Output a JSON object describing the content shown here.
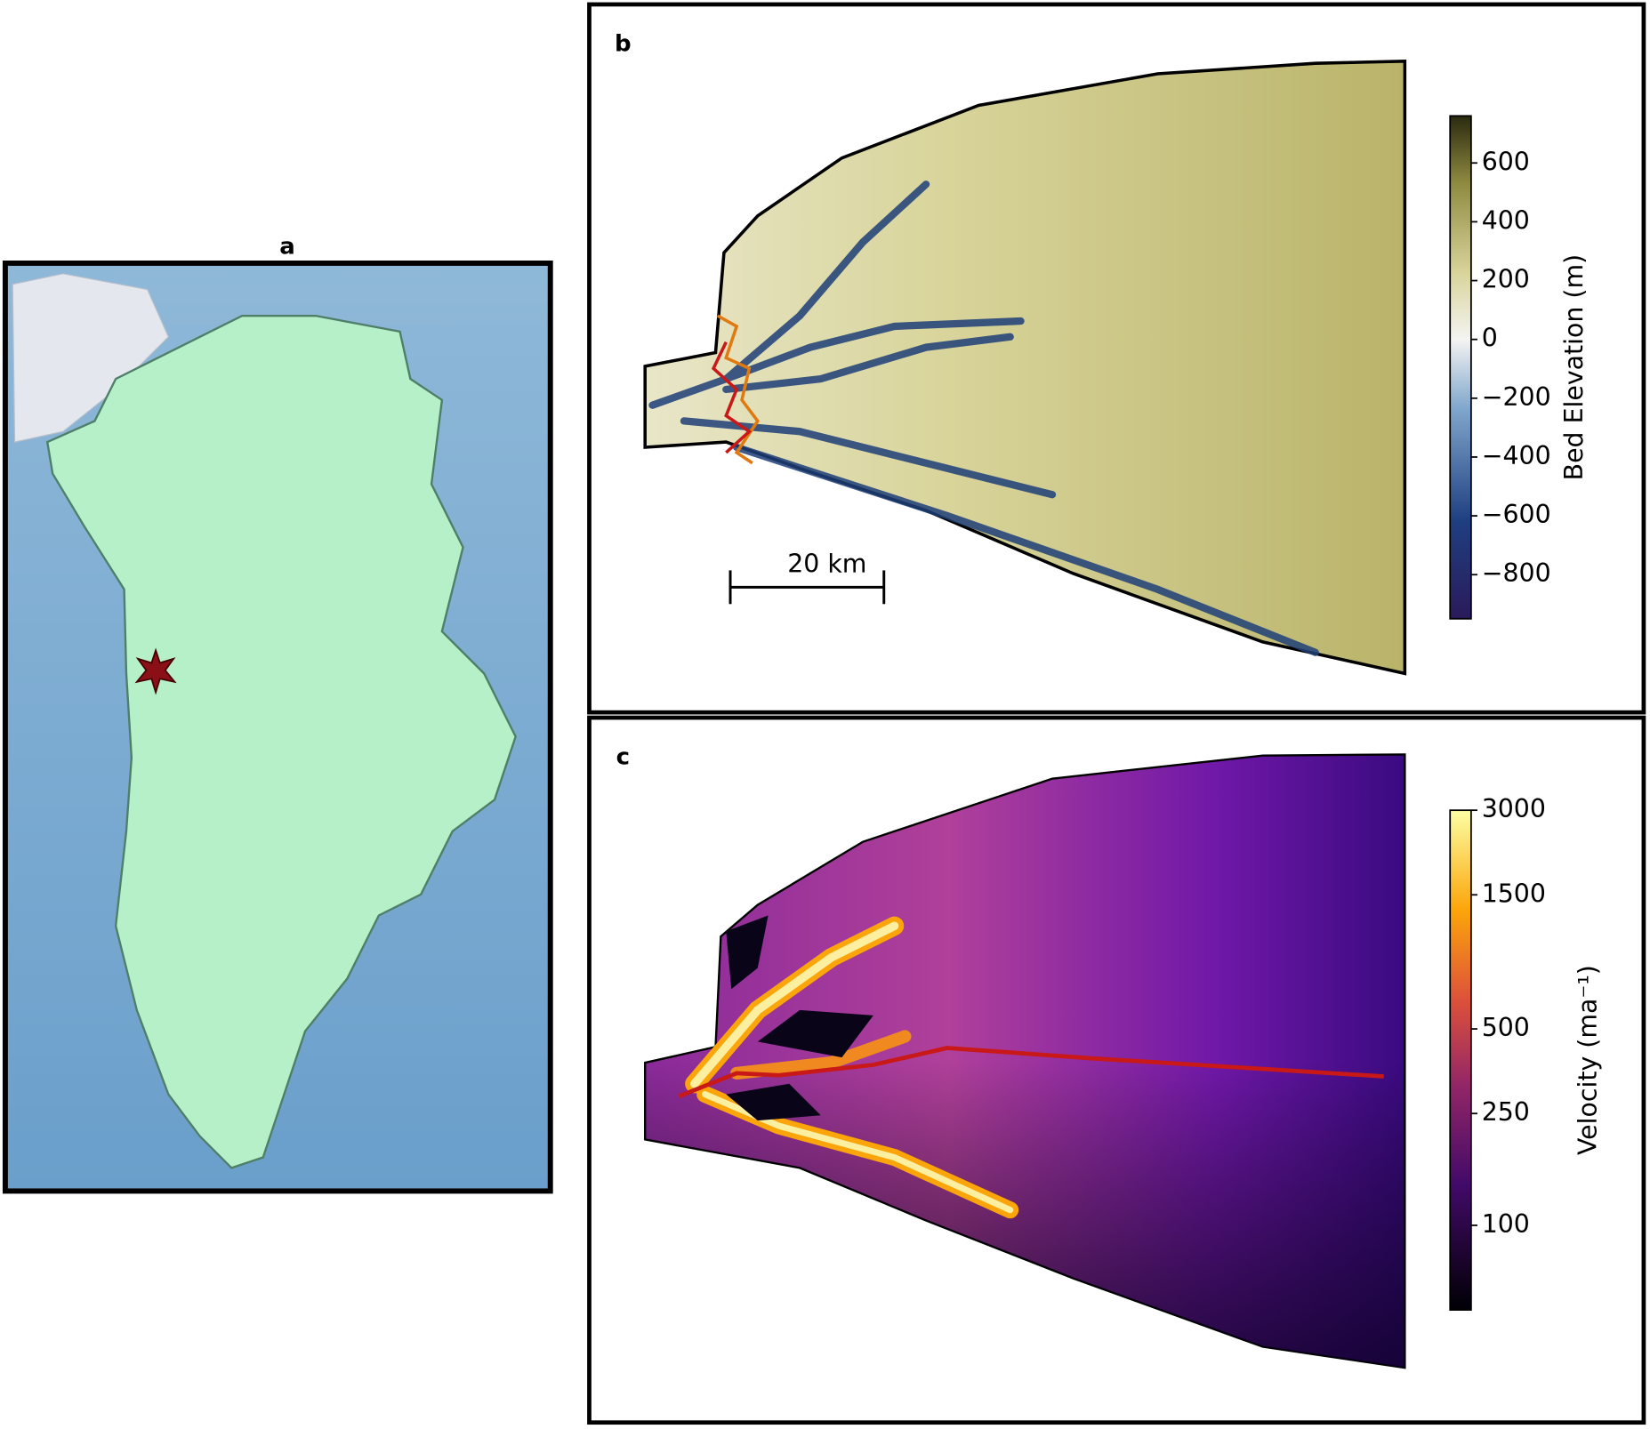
{
  "panels": [
    {
      "label": "a"
    },
    {
      "label": "b",
      "scale_bar": "20 km",
      "colorbar": {
        "label": "Bed Elevation (m)",
        "lim": [
          -950,
          760
        ],
        "ticks": [
          600,
          400,
          200,
          0,
          {
            "value": -200,
            "label": "−200"
          },
          {
            "value": -400,
            "label": "−400"
          },
          {
            "value": -600,
            "label": "−600"
          },
          {
            "value": -800,
            "label": "−800"
          }
        ]
      }
    },
    {
      "label": "c",
      "colorbar": {
        "label": "Velocity (ma⁻¹)",
        "lim": [
          50,
          3000
        ],
        "log": true,
        "ticks": [
          3000,
          1500,
          500,
          250,
          100
        ]
      }
    }
  ]
}
